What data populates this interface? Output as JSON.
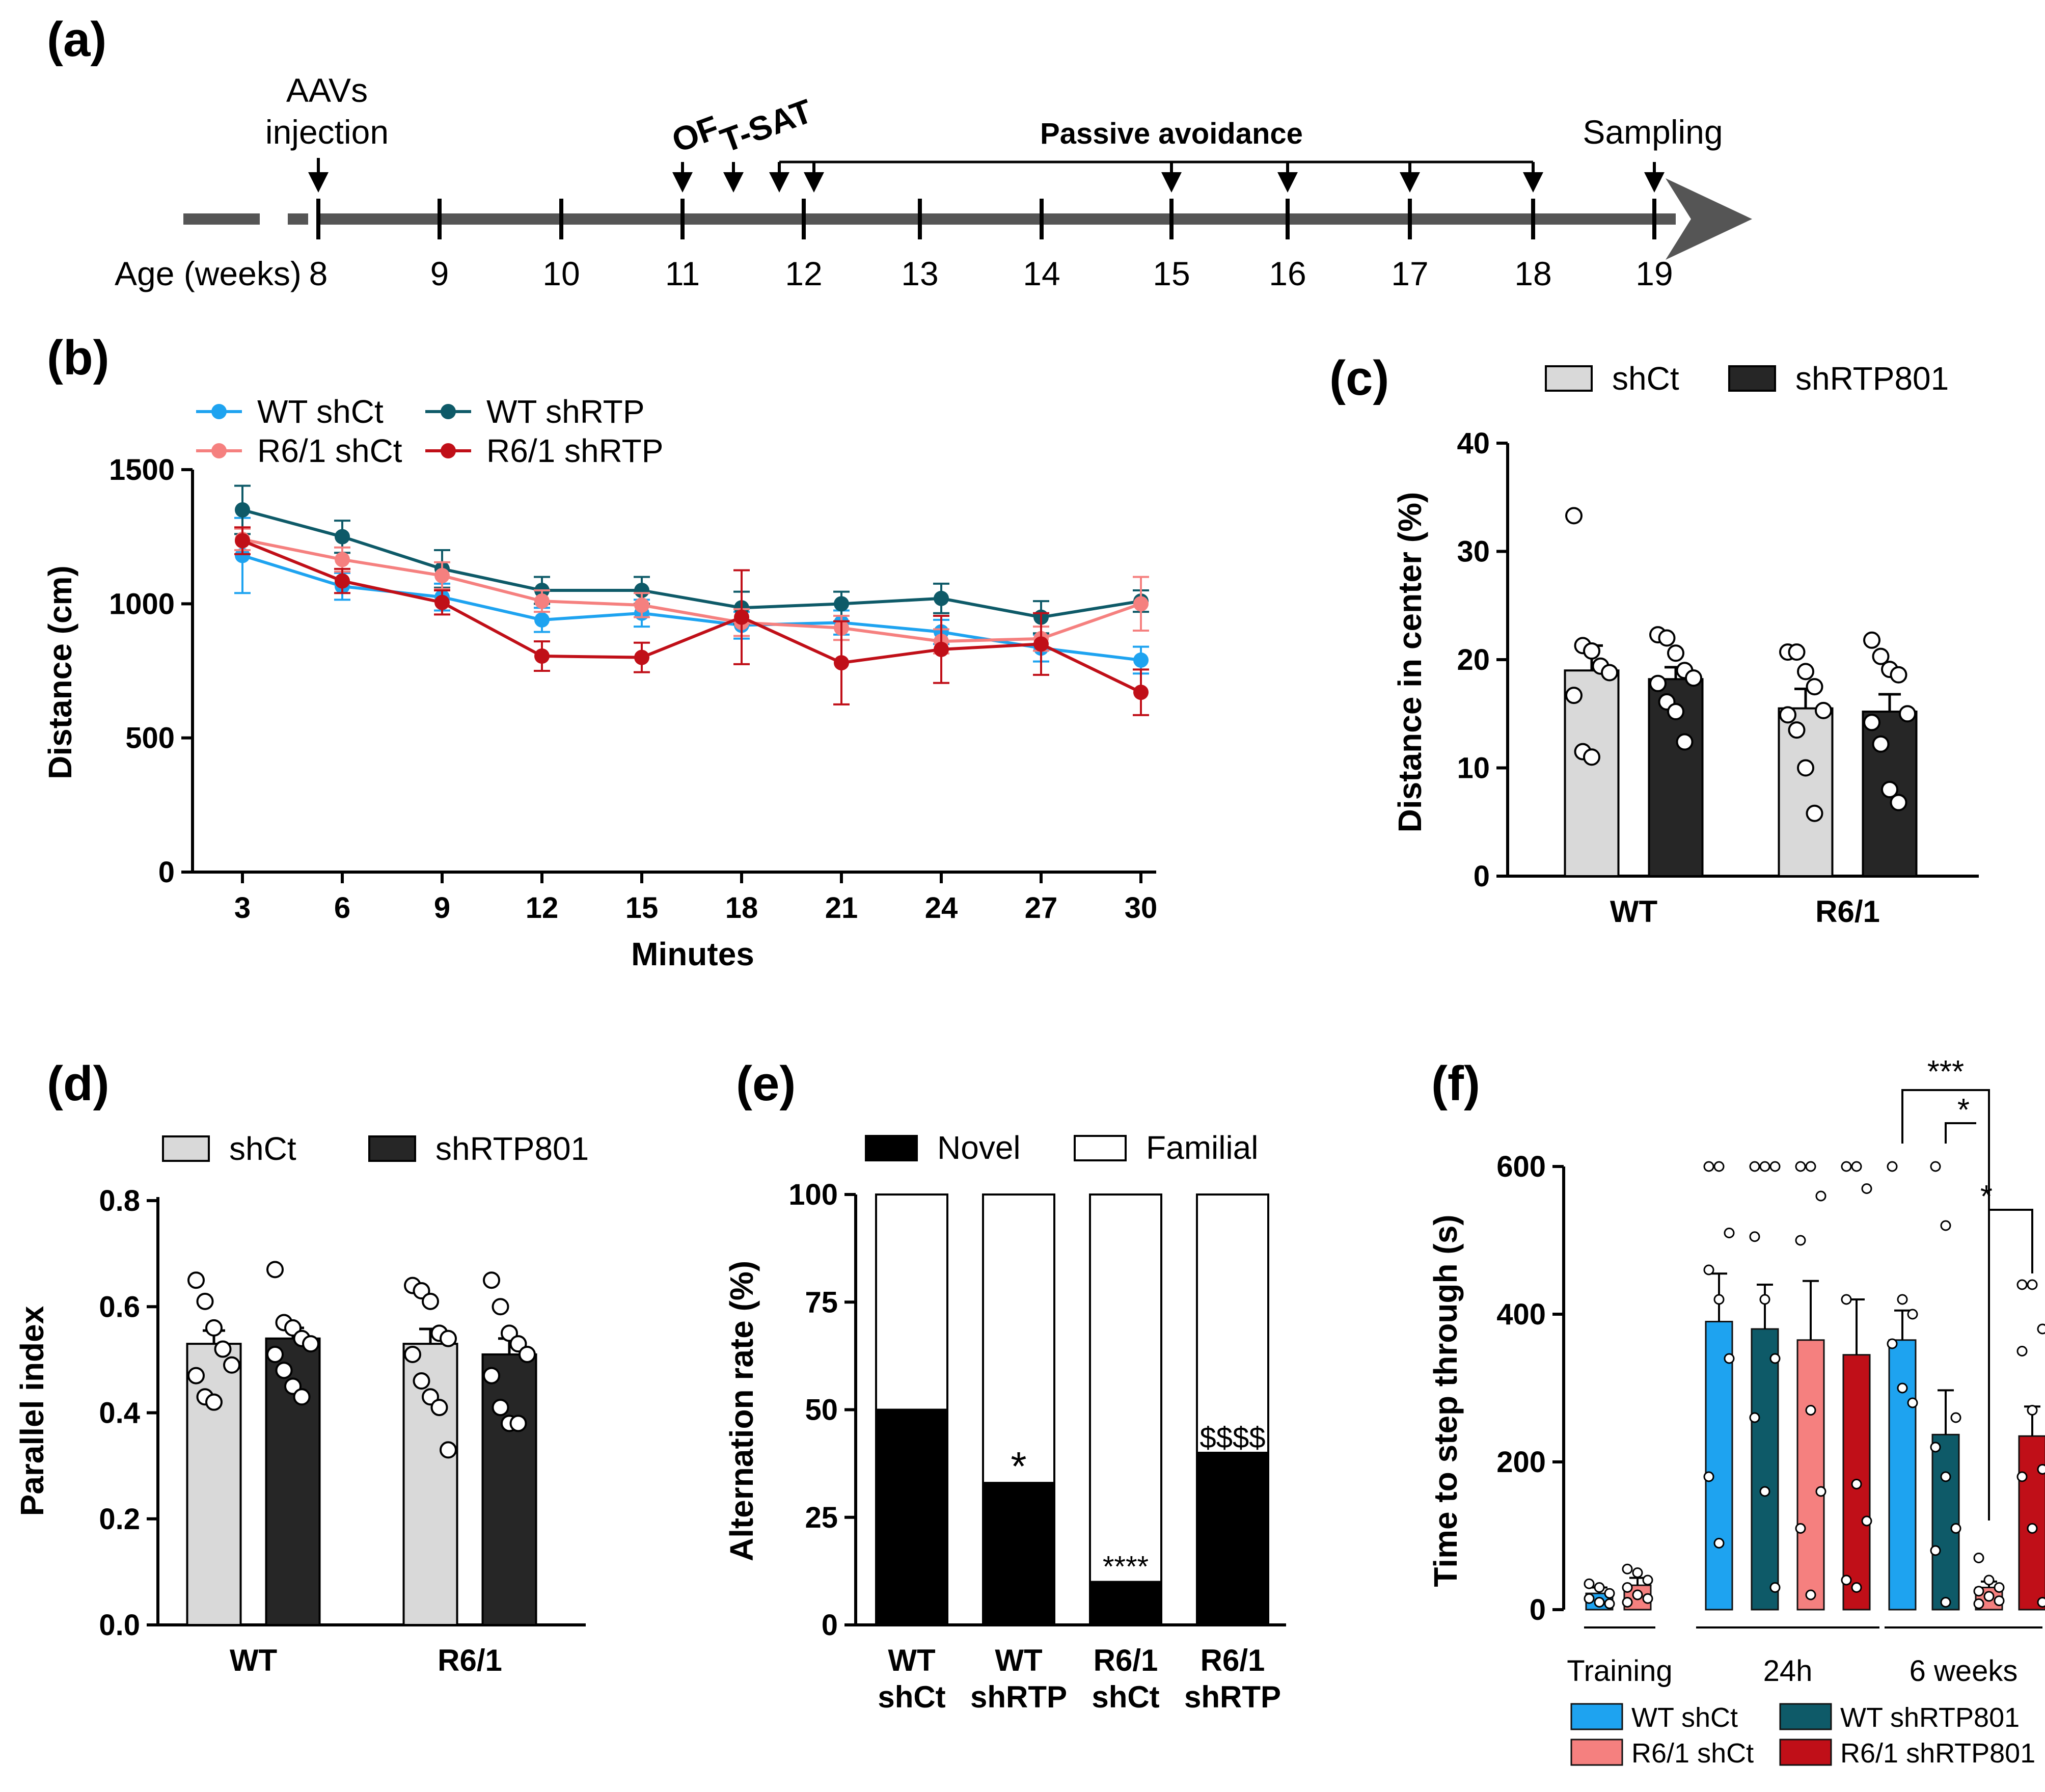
{
  "panels": {
    "a": "(a)",
    "b": "(b)",
    "c": "(c)",
    "d": "(d)",
    "e": "(e)",
    "f": "(f)"
  },
  "colors": {
    "wt_shct": "#1ea3f0",
    "wt_shrtp": "#0e5a68",
    "r61_shct": "#f5807f",
    "r61_shrtp": "#c00f18",
    "shct_bar": "#d9d9d9",
    "shrtp_bar": "#262626"
  },
  "timeline": {
    "age_label": "Age (weeks)",
    "weeks": [
      "8",
      "9",
      "10",
      "11",
      "12",
      "13",
      "14",
      "15",
      "16",
      "17",
      "18",
      "19"
    ],
    "events": {
      "aav_line1": "AAVs",
      "aav_line2": "injection",
      "of": "OF",
      "tsat": "T-SAT",
      "passive": "Passive avoidance",
      "sampling": "Sampling"
    }
  },
  "chart_data": [
    {
      "id": "b",
      "type": "line",
      "xlabel": "Minutes",
      "ylabel": "Distance  (cm)",
      "x": [
        3,
        6,
        9,
        12,
        15,
        18,
        21,
        24,
        27,
        30
      ],
      "xticks": [
        "3",
        "6",
        "9",
        "12",
        "15",
        "18",
        "21",
        "24",
        "27",
        "30"
      ],
      "yticks": [
        "0",
        "500",
        "1000",
        "1500"
      ],
      "ylim": [
        0,
        1500
      ],
      "series": [
        {
          "name": "WT shCt",
          "color_key": "wt_shct",
          "values": [
            1180,
            1065,
            1025,
            940,
            965,
            920,
            930,
            895,
            835,
            790
          ],
          "err": [
            140,
            50,
            50,
            45,
            50,
            50,
            45,
            45,
            50,
            50
          ]
        },
        {
          "name": "WT shRTP",
          "color_key": "wt_shrtp",
          "values": [
            1350,
            1250,
            1130,
            1050,
            1050,
            985,
            1000,
            1020,
            950,
            1010
          ],
          "err": [
            90,
            60,
            70,
            50,
            50,
            60,
            45,
            55,
            60,
            40
          ]
        },
        {
          "name": "R6/1 shCt",
          "color_key": "r61_shct",
          "values": [
            1240,
            1165,
            1105,
            1010,
            995,
            930,
            910,
            860,
            870,
            1000
          ],
          "err": [
            40,
            45,
            50,
            40,
            45,
            50,
            45,
            45,
            45,
            100
          ]
        },
        {
          "name": "R6/1 shRTP",
          "color_key": "r61_shrtp",
          "values": [
            1235,
            1085,
            1005,
            805,
            800,
            950,
            780,
            830,
            850,
            670
          ],
          "err": [
            50,
            45,
            45,
            55,
            55,
            175,
            155,
            125,
            115,
            85
          ]
        }
      ]
    },
    {
      "id": "c",
      "type": "bar",
      "ylabel": "Distance in center  (%)",
      "categories": [
        "WT",
        "R6/1"
      ],
      "yticks": [
        "0",
        "10",
        "20",
        "30",
        "40"
      ],
      "ylim": [
        0,
        40
      ],
      "legend": [
        "shCt",
        "shRTP801"
      ],
      "series": [
        {
          "name": "shCt",
          "values": [
            19.0,
            15.5
          ],
          "err": [
            2.3,
            1.8
          ],
          "points": [
            [
              33.3,
              21.3,
              20.8,
              19.4,
              18.8,
              16.7,
              11.5,
              11.0
            ],
            [
              20.7,
              20.7,
              18.9,
              17.5,
              15.3,
              14.9,
              13.5,
              10.0,
              5.8
            ]
          ]
        },
        {
          "name": "shRTP801",
          "values": [
            18.2,
            15.2
          ],
          "err": [
            1.1,
            1.6
          ],
          "points": [
            [
              22.3,
              22.0,
              20.6,
              19.0,
              18.3,
              17.8,
              16.1,
              15.2,
              12.4
            ],
            [
              21.8,
              20.3,
              19.1,
              18.6,
              15.0,
              14.2,
              12.2,
              8.0,
              6.8
            ]
          ]
        }
      ]
    },
    {
      "id": "d",
      "type": "bar",
      "ylabel": "Parallel index",
      "categories": [
        "WT",
        "R6/1"
      ],
      "yticks": [
        "0.0",
        "0.2",
        "0.4",
        "0.6",
        "0.8"
      ],
      "ylim": [
        0,
        0.8
      ],
      "legend": [
        "shCt",
        "shRTP801"
      ],
      "series": [
        {
          "name": "shCt",
          "values": [
            0.53,
            0.53
          ],
          "err": [
            0.025,
            0.028
          ],
          "points": [
            [
              0.65,
              0.61,
              0.56,
              0.52,
              0.49,
              0.47,
              0.43,
              0.42
            ],
            [
              0.64,
              0.63,
              0.61,
              0.55,
              0.54,
              0.51,
              0.46,
              0.43,
              0.41,
              0.33
            ]
          ]
        },
        {
          "name": "shRTP801",
          "values": [
            0.54,
            0.51
          ],
          "err": [
            0.02,
            0.03
          ],
          "points": [
            [
              0.67,
              0.57,
              0.56,
              0.54,
              0.53,
              0.51,
              0.48,
              0.45,
              0.43
            ],
            [
              0.65,
              0.6,
              0.55,
              0.53,
              0.51,
              0.47,
              0.41,
              0.38,
              0.38
            ]
          ]
        }
      ]
    },
    {
      "id": "e",
      "type": "bar",
      "stacked": true,
      "ylabel": "Alternation rate (%)",
      "categories": [
        "WT shCt",
        "WT shRTP",
        "R6/1 shCt",
        "R6/1 shRTP"
      ],
      "category_lines": [
        [
          "WT",
          "shCt"
        ],
        [
          "WT",
          "shRTP"
        ],
        [
          "R6/1",
          "shCt"
        ],
        [
          "R6/1",
          "shRTP"
        ]
      ],
      "yticks": [
        "0",
        "25",
        "50",
        "75",
        "100"
      ],
      "ylim": [
        0,
        100
      ],
      "legend": [
        "Novel",
        "Familial"
      ],
      "series": [
        {
          "name": "Novel",
          "values": [
            50,
            33,
            10,
            40
          ]
        },
        {
          "name": "Familial",
          "values": [
            50,
            67,
            90,
            60
          ]
        }
      ],
      "annotations": [
        "",
        "*",
        "****",
        "$$$$"
      ]
    },
    {
      "id": "f",
      "type": "bar",
      "ylabel": "Time to step through  (s)",
      "groups": [
        "Training",
        "24h",
        "6 weeks"
      ],
      "yticks": [
        "0",
        "200",
        "400",
        "600"
      ],
      "ylim": [
        0,
        600
      ],
      "legend": [
        "WT shCt",
        "WT shRTP801",
        "R6/1 shCt",
        "R6/1 shRTP801"
      ],
      "bars": [
        {
          "group": 0,
          "series": 0,
          "value": 22,
          "err": 8,
          "points": [
            35,
            30,
            22,
            15,
            10,
            8
          ]
        },
        {
          "group": 0,
          "series": 2,
          "value": 33,
          "err": 10,
          "points": [
            55,
            50,
            40,
            30,
            20,
            15,
            10
          ]
        },
        {
          "group": 1,
          "series": 0,
          "value": 390,
          "err": 65,
          "points": [
            600,
            600,
            510,
            460,
            420,
            340,
            180,
            90
          ]
        },
        {
          "group": 1,
          "series": 1,
          "value": 380,
          "err": 60,
          "points": [
            600,
            600,
            600,
            505,
            420,
            340,
            260,
            160,
            30
          ]
        },
        {
          "group": 1,
          "series": 2,
          "value": 365,
          "err": 80,
          "points": [
            600,
            600,
            560,
            500,
            270,
            160,
            110,
            20
          ]
        },
        {
          "group": 1,
          "series": 3,
          "value": 345,
          "err": 75,
          "points": [
            600,
            600,
            570,
            420,
            170,
            120,
            40,
            30
          ]
        },
        {
          "group": 2,
          "series": 0,
          "value": 365,
          "err": 40,
          "points": [
            600,
            420,
            400,
            360,
            300,
            280
          ]
        },
        {
          "group": 2,
          "series": 1,
          "value": 237,
          "err": 60,
          "points": [
            600,
            520,
            260,
            220,
            180,
            110,
            80,
            10
          ]
        },
        {
          "group": 2,
          "series": 2,
          "value": 30,
          "err": 8,
          "points": [
            70,
            40,
            30,
            25,
            18,
            12,
            8
          ]
        },
        {
          "group": 2,
          "series": 3,
          "value": 235,
          "err": 40,
          "points": [
            440,
            440,
            380,
            350,
            270,
            190,
            180,
            110,
            10
          ]
        }
      ],
      "significance": [
        "***",
        "*",
        "*"
      ]
    }
  ]
}
